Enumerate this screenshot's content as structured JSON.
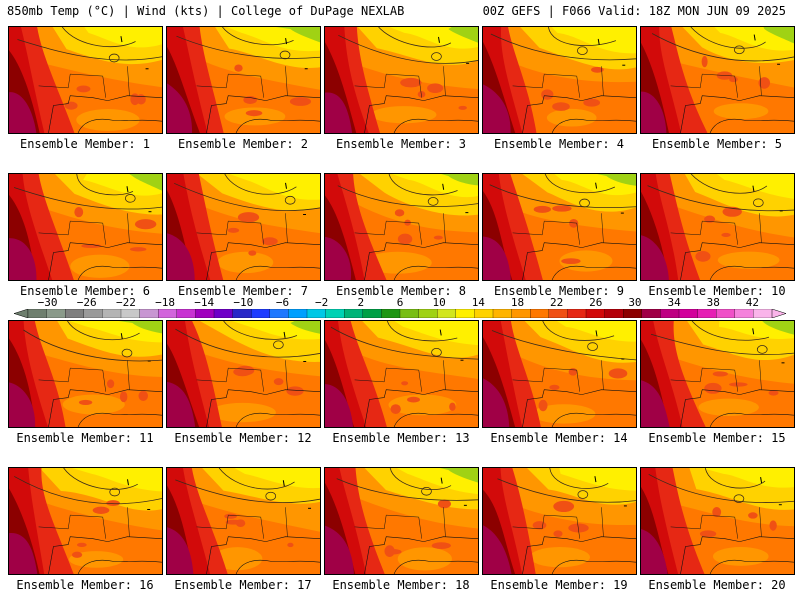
{
  "header": {
    "left": "850mb Temp (°C) | Wind (kts) | College of DuPage NEXLAB",
    "right": "00Z GEFS | F066 Valid: 18Z MON JUN 09 2025"
  },
  "panels": [
    {
      "label": "Ensemble Member: 1"
    },
    {
      "label": "Ensemble Member: 2"
    },
    {
      "label": "Ensemble Member: 3"
    },
    {
      "label": "Ensemble Member: 4"
    },
    {
      "label": "Ensemble Member: 5"
    },
    {
      "label": "Ensemble Member: 6"
    },
    {
      "label": "Ensemble Member: 7"
    },
    {
      "label": "Ensemble Member: 8"
    },
    {
      "label": "Ensemble Member: 9"
    },
    {
      "label": "Ensemble Member: 10"
    },
    {
      "label": "Ensemble Member: 11"
    },
    {
      "label": "Ensemble Member: 12"
    },
    {
      "label": "Ensemble Member: 13"
    },
    {
      "label": "Ensemble Member: 14"
    },
    {
      "label": "Ensemble Member: 15"
    },
    {
      "label": "Ensemble Member: 16"
    },
    {
      "label": "Ensemble Member: 17"
    },
    {
      "label": "Ensemble Member: 18"
    },
    {
      "label": "Ensemble Member: 19"
    },
    {
      "label": "Ensemble Member: 20"
    }
  ],
  "colorbar": {
    "labels": [
      "−30",
      "−26",
      "−22",
      "−18",
      "−14",
      "−10",
      "−6",
      "−2",
      "2",
      "6",
      "10",
      "14",
      "18",
      "22",
      "26",
      "30",
      "34",
      "38",
      "42"
    ],
    "colors": [
      "#6e7f6e",
      "#8a9a8a",
      "#7f7f7f",
      "#9a9a9a",
      "#b4b4b4",
      "#c8c8c8",
      "#c896d2",
      "#d264dc",
      "#c832d2",
      "#a000be",
      "#6e00c8",
      "#2828c8",
      "#1e3cff",
      "#1e78ff",
      "#00a0ff",
      "#00c8e6",
      "#00d2b4",
      "#00b478",
      "#00a046",
      "#1e9614",
      "#78be14",
      "#a0d214",
      "#d2e61e",
      "#fff000",
      "#ffd200",
      "#ffb400",
      "#ff9600",
      "#ff7800",
      "#f05014",
      "#e62814",
      "#d20a0a",
      "#b4000a",
      "#8c0000",
      "#a00046",
      "#be0082",
      "#d2009b",
      "#e61eb4",
      "#f050c8",
      "#f582dc",
      "#fab4ea"
    ]
  }
}
